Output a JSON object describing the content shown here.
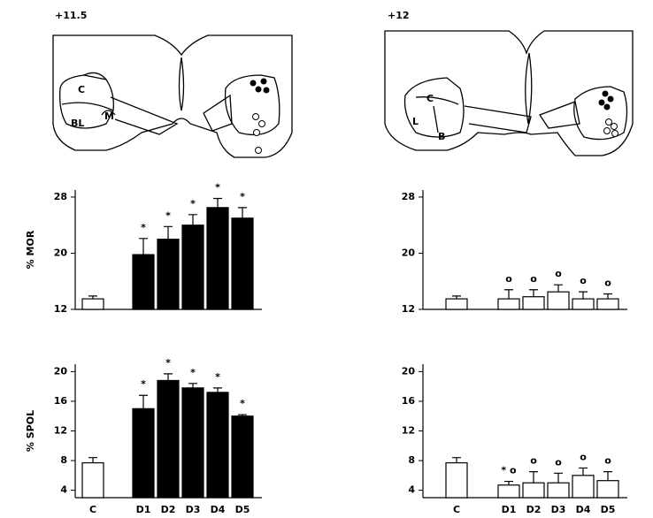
{
  "diagrams": [
    {
      "title": "+11.5",
      "labels": [
        "C",
        "BL",
        "M"
      ]
    },
    {
      "title": "+12",
      "labels": [
        "C",
        "L",
        "B"
      ]
    }
  ],
  "chart_data": [
    {
      "type": "bar",
      "y_label": "% MOR",
      "ylim": [
        12,
        29
      ],
      "yticks": [
        12,
        20,
        28
      ],
      "values": [
        13.5,
        19.8,
        22,
        24,
        26.5,
        25
      ],
      "errors": [
        0.4,
        2.3,
        1.8,
        1.5,
        1.3,
        1.5
      ],
      "colors": [
        "#ffffff",
        "#000000",
        "#000000",
        "#000000",
        "#000000",
        "#000000"
      ],
      "annotations": [
        null,
        "*",
        "*",
        "*",
        "*",
        "*"
      ]
    },
    {
      "type": "bar",
      "ylim": [
        12,
        29
      ],
      "yticks": [
        12,
        20,
        28
      ],
      "values": [
        13.5,
        13.5,
        13.8,
        14.5,
        13.5,
        13.5
      ],
      "errors": [
        0.4,
        1.3,
        1,
        1,
        1,
        0.7
      ],
      "colors": [
        "#ffffff",
        "#ffffff",
        "#ffffff",
        "#ffffff",
        "#ffffff",
        "#ffffff"
      ],
      "annotations": [
        null,
        "o",
        "o",
        "o",
        "o",
        "o"
      ]
    },
    {
      "type": "bar",
      "y_label": "% SPOL",
      "ylim": [
        3,
        21
      ],
      "yticks": [
        4,
        8,
        12,
        16,
        20
      ],
      "categories": [
        "C",
        "D1",
        "D2",
        "D3",
        "D4",
        "D5"
      ],
      "values": [
        7.7,
        15,
        18.8,
        17.8,
        17.2,
        14
      ],
      "errors": [
        0.7,
        1.8,
        0.9,
        0.6,
        0.6,
        0.2
      ],
      "colors": [
        "#ffffff",
        "#000000",
        "#000000",
        "#000000",
        "#000000",
        "#000000"
      ],
      "annotations": [
        null,
        "*",
        "*",
        "*",
        "*",
        "*"
      ]
    },
    {
      "type": "bar",
      "ylim": [
        3,
        21
      ],
      "yticks": [
        4,
        8,
        12,
        16,
        20
      ],
      "categories": [
        "C",
        "D1",
        "D2",
        "D3",
        "D4",
        "D5"
      ],
      "values": [
        7.7,
        4.7,
        5,
        5,
        6,
        5.3
      ],
      "errors": [
        0.7,
        0.5,
        1.5,
        1.3,
        1,
        1.2
      ],
      "colors": [
        "#ffffff",
        "#ffffff",
        "#ffffff",
        "#ffffff",
        "#ffffff",
        "#ffffff"
      ],
      "annotations": [
        null,
        "* o",
        "o",
        "o",
        "o",
        "o"
      ]
    }
  ]
}
